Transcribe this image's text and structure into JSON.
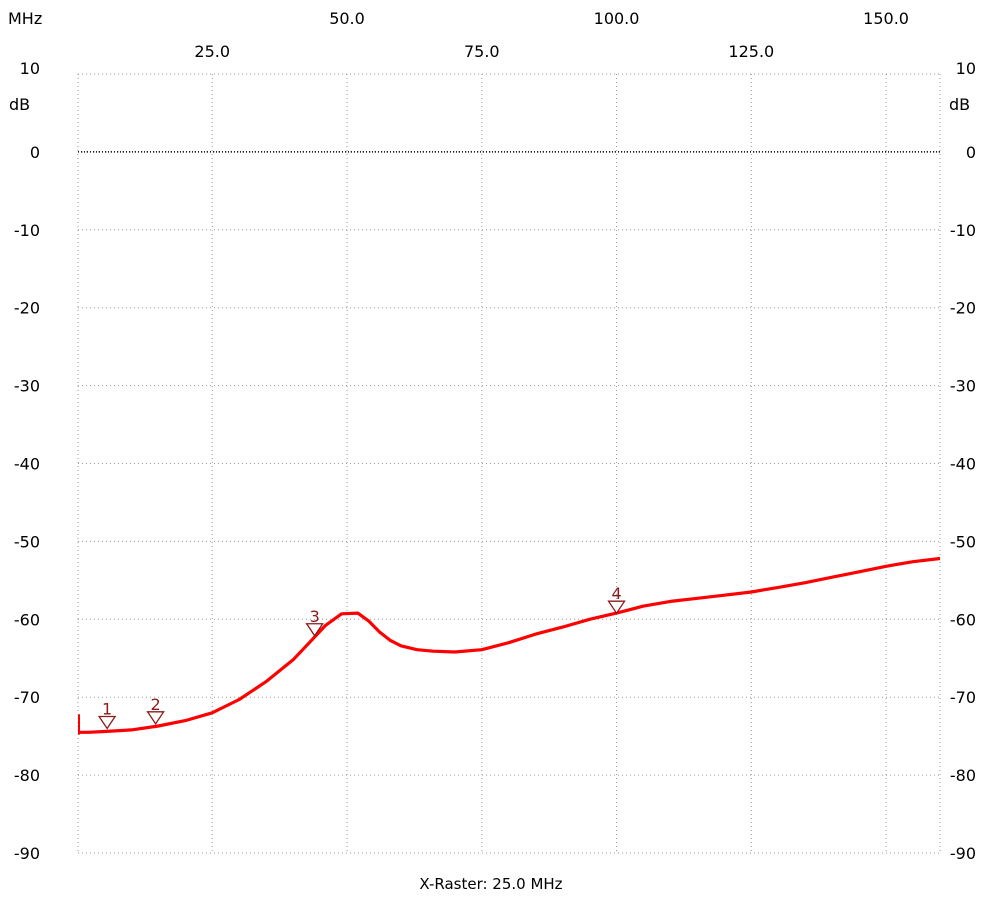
{
  "colors": {
    "trace": "#ff0000",
    "marker": "#8b1a1a",
    "grid": "#9a9a9a",
    "text": "#000000"
  },
  "axis_units": {
    "x_unit": "MHz",
    "y_unit": "dB",
    "y_top_value": "10"
  },
  "caption": "X-Raster: 25.0 MHz",
  "chart_data": {
    "type": "line",
    "title": "",
    "xlabel": "MHz",
    "ylabel": "dB",
    "xlim": [
      0.1,
      160.0
    ],
    "ylim": [
      -90,
      10
    ],
    "grid": true,
    "reference_line_y": 0,
    "x_ticks_top_row": [
      "50.0",
      "100.0",
      "150.0"
    ],
    "x_ticks_bottom_row": [
      "25.0",
      "75.0",
      "125.0"
    ],
    "x_tick_values_top": [
      50,
      100,
      150
    ],
    "x_tick_values_bottom": [
      25,
      75,
      125
    ],
    "y_ticks": [
      "10",
      "0",
      "-10",
      "-20",
      "-30",
      "-40",
      "-50",
      "-60",
      "-70",
      "-80",
      "-90"
    ],
    "y_tick_values": [
      10,
      0,
      -10,
      -20,
      -30,
      -40,
      -50,
      -60,
      -70,
      -80,
      -90
    ],
    "series": [
      {
        "x": [
          0.1,
          2,
          5,
          10,
          15,
          20,
          25,
          30,
          35,
          40,
          43,
          46,
          49,
          52,
          54,
          56,
          58,
          60,
          63,
          66,
          70,
          75,
          80,
          85,
          90,
          95,
          100,
          105,
          110,
          115,
          120,
          125,
          130,
          135,
          140,
          145,
          150,
          155,
          160
        ],
        "y": [
          -74.5,
          -74.5,
          -74.4,
          -74.2,
          -73.7,
          -73.0,
          -72.0,
          -70.3,
          -68.0,
          -65.2,
          -63.0,
          -60.8,
          -59.3,
          -59.2,
          -60.2,
          -61.6,
          -62.7,
          -63.4,
          -63.9,
          -64.1,
          -64.2,
          -63.9,
          -63.0,
          -61.9,
          -61.0,
          -60.0,
          -59.2,
          -58.3,
          -57.7,
          -57.3,
          -56.9,
          -56.5,
          -55.9,
          -55.3,
          -54.6,
          -53.9,
          -53.2,
          -52.6,
          -52.2
        ]
      }
    ],
    "markers": [
      {
        "label": "1",
        "x": 5.5,
        "y": -74.4
      },
      {
        "label": "2",
        "x": 14.5,
        "y": -73.8
      },
      {
        "label": "3",
        "x": 44.0,
        "y": -62.5
      },
      {
        "label": "4",
        "x": 100.0,
        "y": -59.6
      }
    ]
  }
}
